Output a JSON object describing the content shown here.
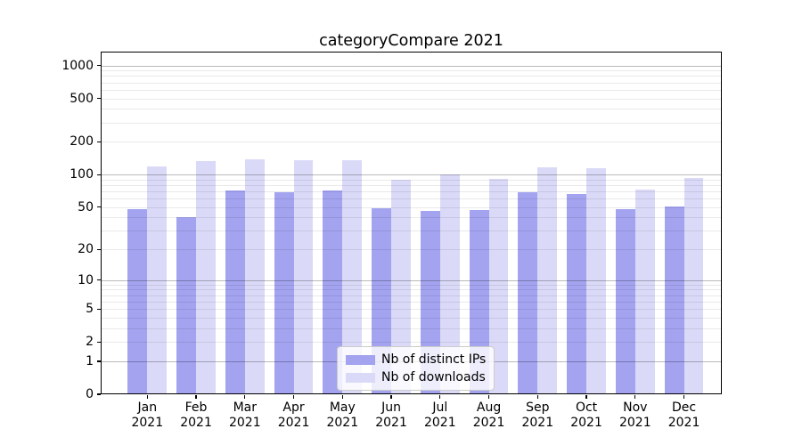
{
  "title": "categoryCompare 2021",
  "chart_data": {
    "type": "bar",
    "title": "categoryCompare 2021",
    "categories": [
      "Jan 2021",
      "Feb 2021",
      "Mar 2021",
      "Apr 2021",
      "May 2021",
      "Jun 2021",
      "Jul 2021",
      "Aug 2021",
      "Sep 2021",
      "Oct 2021",
      "Nov 2021",
      "Dec 2021"
    ],
    "series": [
      {
        "name": "Nb of distinct IPs",
        "color": "#a3a3f0",
        "values": [
          48,
          40,
          72,
          69,
          71,
          49,
          46,
          47,
          69,
          66,
          48,
          51
        ]
      },
      {
        "name": "Nb of downloads",
        "color": "#dadaf8",
        "values": [
          118,
          132,
          139,
          135,
          136,
          90,
          101,
          91,
          117,
          114,
          73,
          93
        ]
      }
    ],
    "xlabel": "",
    "ylabel": "",
    "yscale": "log1p",
    "ylim": [
      0,
      1000
    ],
    "grid": true,
    "legend_position": "lower center",
    "y_ticks": [
      {
        "label": "1000",
        "value": 1000
      },
      {
        "label": "500",
        "value": 500
      },
      {
        "label": "200",
        "value": 200
      },
      {
        "label": "100",
        "value": 100
      },
      {
        "label": "50",
        "value": 50
      },
      {
        "label": "20",
        "value": 20
      },
      {
        "label": "10",
        "value": 10
      },
      {
        "label": "5",
        "value": 5
      },
      {
        "label": "2",
        "value": 2
      },
      {
        "label": "1",
        "value": 1
      },
      {
        "label": "0",
        "value": 0
      }
    ],
    "y_major_gridlines": [
      1,
      10,
      100,
      1000
    ],
    "y_minor_gridlines": [
      2,
      3,
      4,
      5,
      6,
      7,
      8,
      9,
      20,
      30,
      40,
      50,
      60,
      70,
      80,
      90,
      200,
      300,
      400,
      500,
      600,
      700,
      800,
      900
    ],
    "colors": {
      "major_grid": "rgba(0,0,0,0.27)",
      "minor_grid": "rgba(0,0,0,0.085)",
      "spine": "#000000",
      "text": "#000000",
      "background": "#ffffff"
    }
  }
}
